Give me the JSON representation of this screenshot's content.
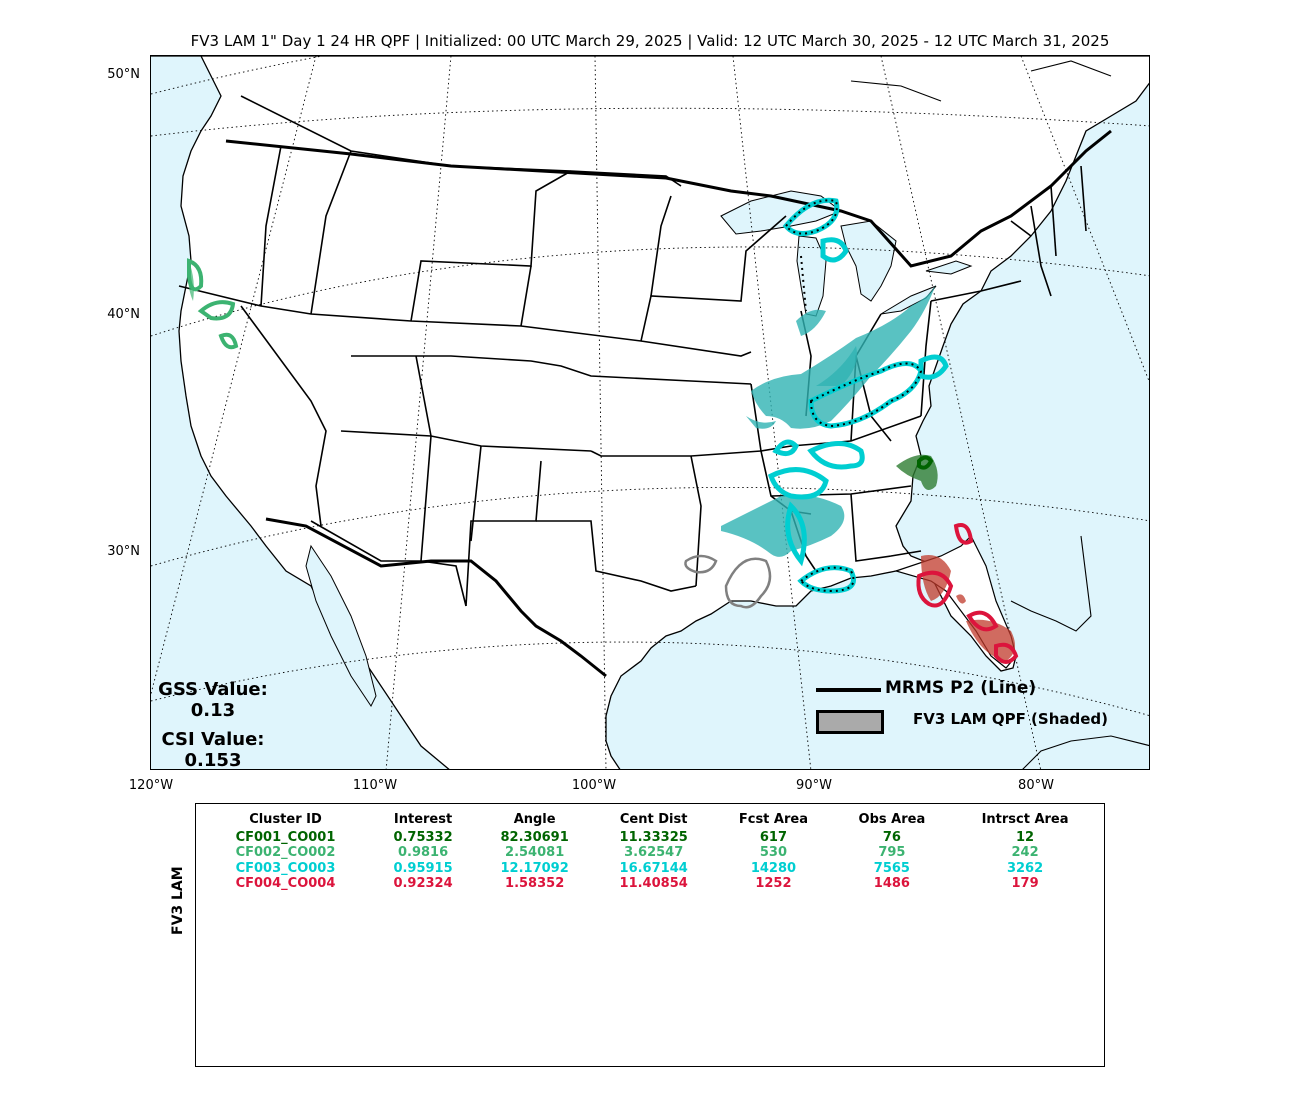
{
  "title": "FV3 LAM 1\" Day 1 24 HR QPF | Initialized: 00 UTC March 29, 2025 | Valid: 12 UTC March 30, 2025 - 12 UTC March 31, 2025",
  "map": {
    "lat_labels": [
      "50°N",
      "40°N",
      "30°N"
    ],
    "lon_labels": [
      "120°W",
      "110°W",
      "100°W",
      "90°W",
      "80°W"
    ],
    "colors": {
      "ocean": "#dff5fc",
      "land": "#ffffff",
      "obs_line": "#000000"
    }
  },
  "scores": {
    "gss_label": "GSS Value:",
    "gss_value": "0.13",
    "csi_label": "CSI Value:",
    "csi_value": "0.153"
  },
  "legend": {
    "line_label": "MRMS P2 (Line)",
    "shaded_label": "FV3 LAM QPF (Shaded)"
  },
  "table": {
    "ylabel": "FV3 LAM",
    "headers": [
      "Cluster ID",
      "Interest",
      "Angle",
      "Cent Dist",
      "Fcst Area",
      "Obs Area",
      "Intrsct Area"
    ],
    "rows": [
      {
        "color": "#006400",
        "cells": [
          "CF001_CO001",
          "0.75332",
          "82.30691",
          "11.33325",
          "617",
          "76",
          "12"
        ]
      },
      {
        "color": "#3cb371",
        "cells": [
          "CF002_CO002",
          "0.9816",
          "2.54081",
          "3.62547",
          "530",
          "795",
          "242"
        ]
      },
      {
        "color": "#00ced1",
        "cells": [
          "CF003_CO003",
          "0.95915",
          "12.17092",
          "16.67144",
          "14280",
          "7565",
          "3262"
        ]
      },
      {
        "color": "#dc143c",
        "cells": [
          "CF004_CO004",
          "0.92324",
          "1.58352",
          "11.40854",
          "1252",
          "1486",
          "179"
        ]
      }
    ]
  },
  "clusters": [
    {
      "id": "CF001_CO001",
      "color": "#006400",
      "region": "South Carolina"
    },
    {
      "id": "CF002_CO002",
      "color": "#3cb371",
      "region": "Northern California"
    },
    {
      "id": "CF003_CO003",
      "color": "#00ced1",
      "region": "Ohio and Mississippi Valleys"
    },
    {
      "id": "CF004_CO004",
      "color": "#dc143c",
      "region": "Florida"
    },
    {
      "id": "unmatched",
      "color": "#808080",
      "region": "East Texas"
    }
  ]
}
